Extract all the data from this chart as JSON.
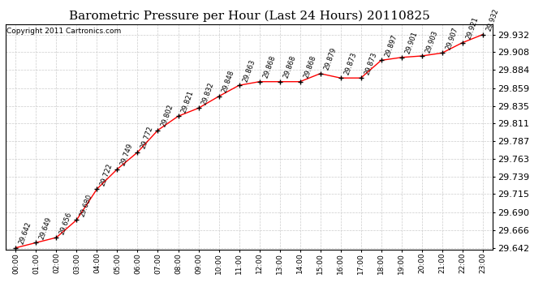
{
  "title": "Barometric Pressure per Hour (Last 24 Hours) 20110825",
  "copyright": "Copyright 2011 Cartronics.com",
  "hours": [
    "00:00",
    "01:00",
    "02:00",
    "03:00",
    "04:00",
    "05:00",
    "06:00",
    "07:00",
    "08:00",
    "09:00",
    "10:00",
    "11:00",
    "12:00",
    "13:00",
    "14:00",
    "15:00",
    "16:00",
    "17:00",
    "18:00",
    "19:00",
    "20:00",
    "21:00",
    "22:00",
    "23:00"
  ],
  "values": [
    29.642,
    29.649,
    29.656,
    29.68,
    29.722,
    29.749,
    29.772,
    29.802,
    29.821,
    29.832,
    29.848,
    29.863,
    29.868,
    29.868,
    29.868,
    29.879,
    29.873,
    29.873,
    29.897,
    29.901,
    29.903,
    29.907,
    29.921,
    29.932
  ],
  "ylim_min": 29.64,
  "ylim_max": 29.946,
  "yticks": [
    29.642,
    29.666,
    29.69,
    29.715,
    29.739,
    29.763,
    29.787,
    29.811,
    29.835,
    29.859,
    29.884,
    29.908,
    29.932
  ],
  "line_color": "red",
  "marker_color": "black",
  "bg_color": "white",
  "grid_color": "#cccccc",
  "title_fontsize": 11,
  "annotation_fontsize": 6,
  "copyright_fontsize": 6.5,
  "ytick_fontsize": 8,
  "xtick_fontsize": 6.5
}
